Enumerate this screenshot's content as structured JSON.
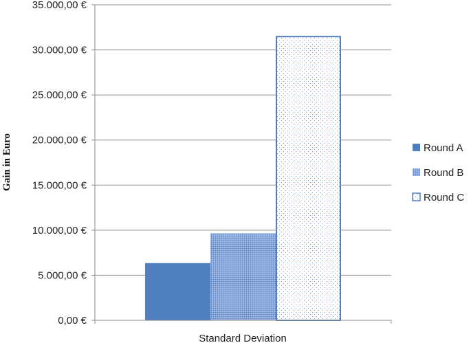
{
  "chart_data": {
    "type": "bar",
    "title": "",
    "xlabel": "",
    "ylabel": "Gain in Euro",
    "categories": [
      "Standard Deviation"
    ],
    "series": [
      {
        "name": "Round A",
        "values": [
          6350
        ],
        "color": "#4f7fbf",
        "fill": "solid"
      },
      {
        "name": "Round B",
        "values": [
          9650
        ],
        "color": "#7f9fd6",
        "fill": "fine-dots"
      },
      {
        "name": "Round C",
        "values": [
          31550
        ],
        "color": "#4f7fbf",
        "fill": "sparse-dots-on-white"
      }
    ],
    "ylim": [
      0,
      35000
    ],
    "yticks": [
      "0,00 €",
      "5.000,00 €",
      "10.000,00 €",
      "15.000,00 €",
      "20.000,00 €",
      "25.000,00 €",
      "30.000,00 €",
      "35.000,00 €"
    ],
    "ytick_values": [
      0,
      5000,
      10000,
      15000,
      20000,
      25000,
      30000,
      35000
    ],
    "grid": true,
    "legend_position": "right"
  }
}
